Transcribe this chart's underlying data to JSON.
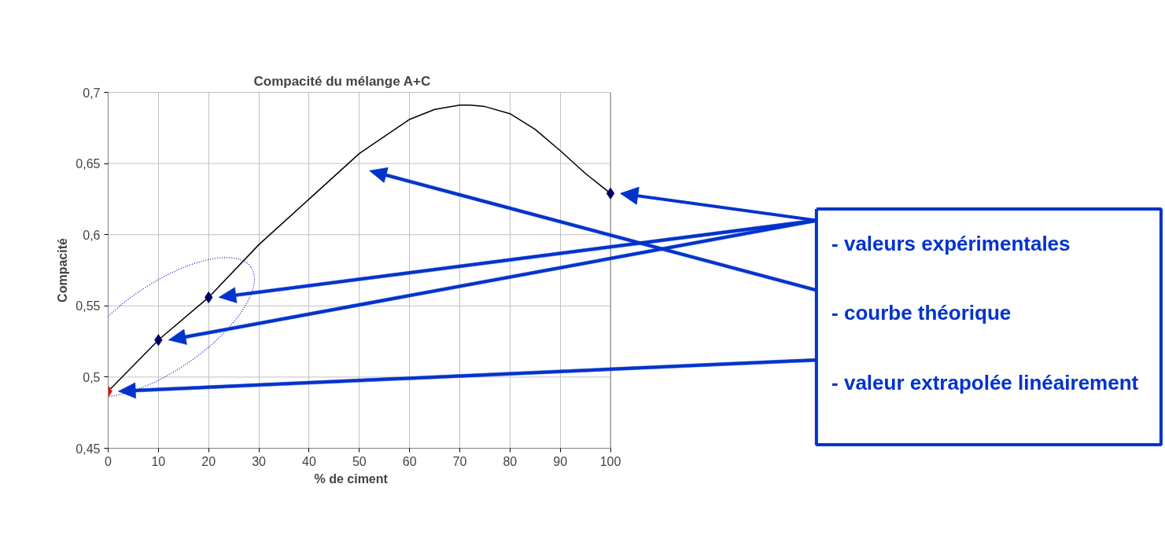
{
  "chart_data": {
    "type": "scatter",
    "title": "Compacité du mélange A+C",
    "xlabel": "% de ciment",
    "ylabel": "Compacité",
    "xlim": [
      0,
      100
    ],
    "ylim": [
      0.45,
      0.7
    ],
    "xticks": [
      0,
      10,
      20,
      30,
      40,
      50,
      60,
      70,
      80,
      90,
      100
    ],
    "yticks": [
      {
        "value": 0.45,
        "label": "0,45"
      },
      {
        "value": 0.5,
        "label": "0,5"
      },
      {
        "value": 0.55,
        "label": "0,55"
      },
      {
        "value": 0.6,
        "label": "0,6"
      },
      {
        "value": 0.65,
        "label": "0,65"
      },
      {
        "value": 0.7,
        "label": "0,7"
      }
    ],
    "grid": true,
    "marker": "diamond",
    "series": [
      {
        "color": "#000066",
        "x": [
          10,
          20,
          100
        ],
        "values": [
          0.526,
          0.556,
          0.629
        ]
      },
      {
        "type": "line",
        "color": "#000000",
        "marker": "none",
        "x": [
          0,
          10,
          20,
          30,
          40,
          50,
          60,
          65,
          70,
          72,
          75,
          80,
          85,
          90,
          95,
          100
        ],
        "values": [
          0.49,
          0.526,
          0.556,
          0.593,
          0.625,
          0.657,
          0.681,
          0.688,
          0.691,
          0.691,
          0.69,
          0.685,
          0.674,
          0.659,
          0.643,
          0.629
        ]
      },
      {
        "color": "#ff0000",
        "x": [
          0
        ],
        "values": [
          0.49
        ]
      }
    ],
    "annotations": [
      "- valeurs expérimentales",
      "- courbe théorique",
      "- valeur extrapolée linéairement"
    ]
  }
}
